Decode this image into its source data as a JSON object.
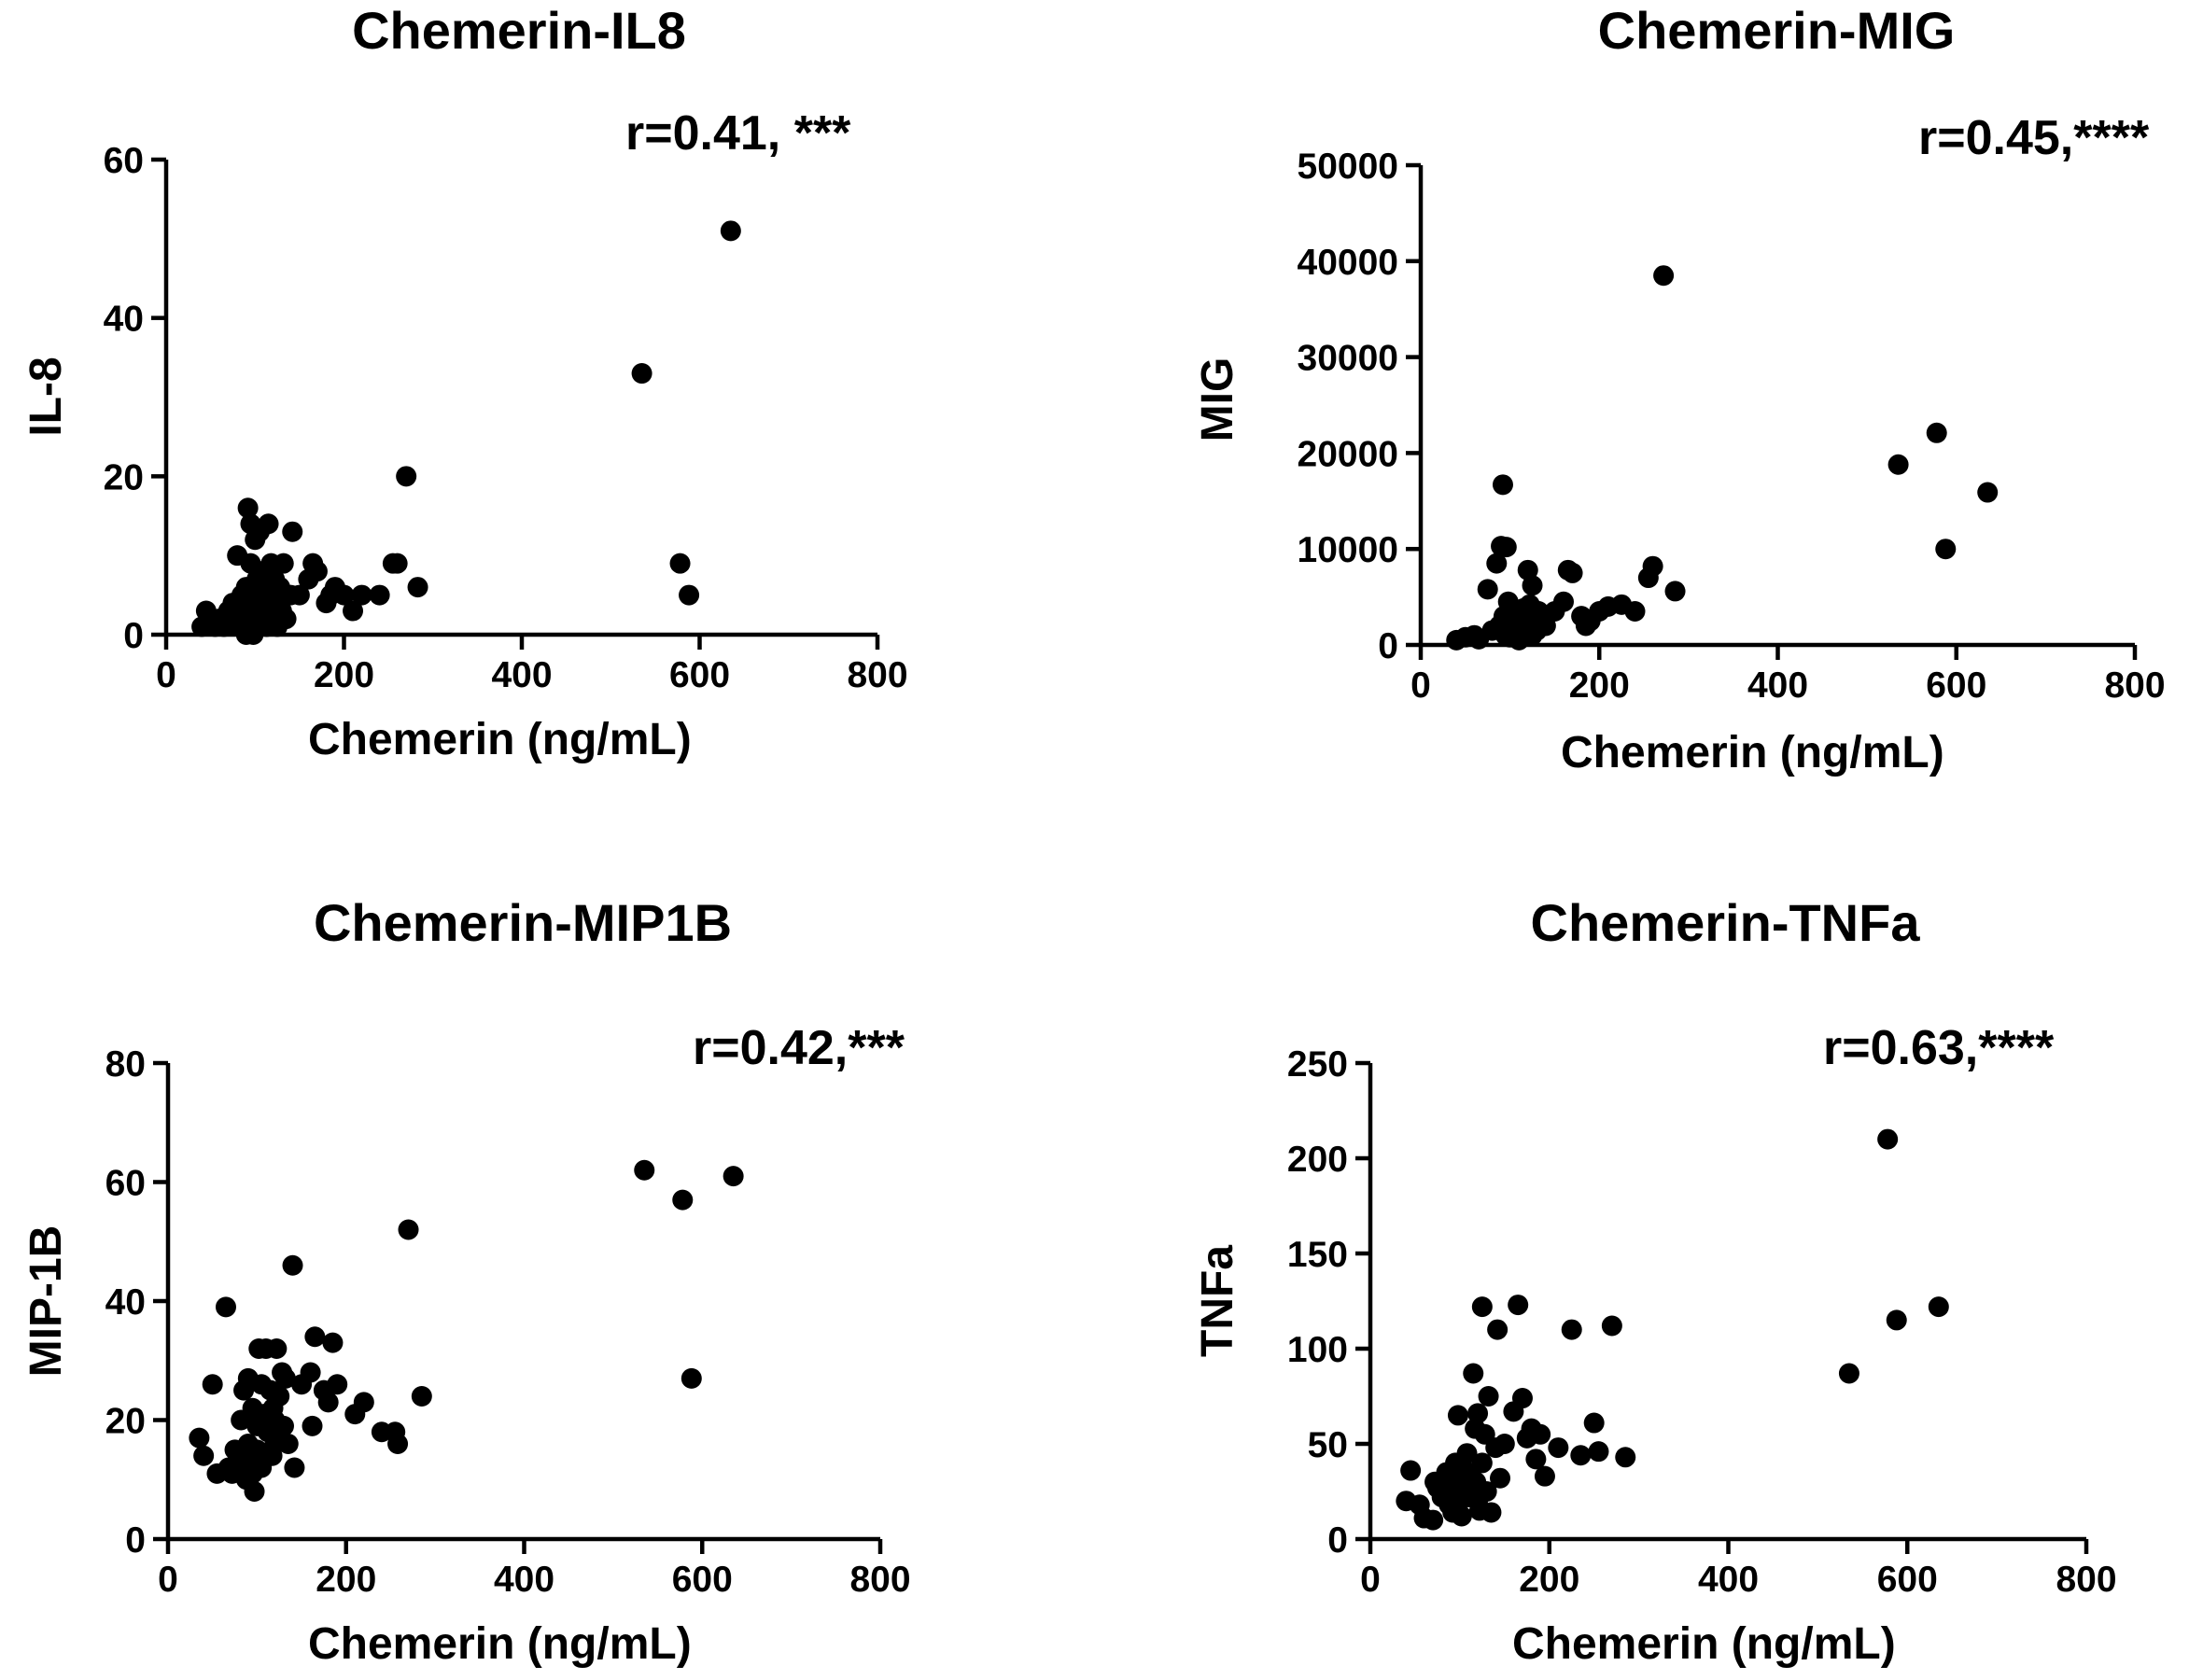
{
  "figure": {
    "background": "#ffffff",
    "marker_color": "#000000"
  },
  "chart_data": [
    {
      "type": "scatter",
      "title": "Chemerin-IL8",
      "annotation": "r=0.41, ***",
      "xlabel": "Chemerin (ng/mL)",
      "ylabel": "IL-8",
      "xlim": [
        0,
        800
      ],
      "ylim": [
        0,
        60
      ],
      "xticks": [
        0,
        200,
        400,
        600,
        800
      ],
      "yticks": [
        0,
        20,
        40,
        60
      ],
      "xtick_labels": [
        "0",
        "200",
        "400",
        "600",
        "800"
      ],
      "ytick_labels": [
        "0",
        "20",
        "40",
        "60"
      ],
      "points": [
        [
          40,
          1
        ],
        [
          45,
          3
        ],
        [
          50,
          2
        ],
        [
          55,
          1
        ],
        [
          60,
          2
        ],
        [
          65,
          1
        ],
        [
          70,
          3
        ],
        [
          75,
          4
        ],
        [
          78,
          2
        ],
        [
          80,
          10
        ],
        [
          82,
          1
        ],
        [
          85,
          5
        ],
        [
          88,
          3
        ],
        [
          90,
          6
        ],
        [
          90,
          0
        ],
        [
          92,
          16
        ],
        [
          93,
          2
        ],
        [
          95,
          9
        ],
        [
          95,
          14
        ],
        [
          97,
          4
        ],
        [
          98,
          0
        ],
        [
          100,
          3
        ],
        [
          100,
          12
        ],
        [
          102,
          7
        ],
        [
          103,
          1
        ],
        [
          105,
          5
        ],
        [
          105,
          13
        ],
        [
          107,
          2
        ],
        [
          108,
          8
        ],
        [
          110,
          4
        ],
        [
          112,
          6
        ],
        [
          113,
          1
        ],
        [
          115,
          14
        ],
        [
          117,
          3
        ],
        [
          118,
          9
        ],
        [
          120,
          2
        ],
        [
          120,
          5
        ],
        [
          122,
          7
        ],
        [
          125,
          1
        ],
        [
          125,
          4
        ],
        [
          128,
          6
        ],
        [
          130,
          3
        ],
        [
          132,
          9
        ],
        [
          135,
          2
        ],
        [
          140,
          5
        ],
        [
          142,
          13
        ],
        [
          150,
          5
        ],
        [
          160,
          7
        ],
        [
          165,
          9
        ],
        [
          170,
          8
        ],
        [
          180,
          4
        ],
        [
          185,
          5
        ],
        [
          190,
          6
        ],
        [
          200,
          5
        ],
        [
          210,
          3
        ],
        [
          220,
          5
        ],
        [
          240,
          5
        ],
        [
          255,
          9
        ],
        [
          260,
          9
        ],
        [
          270,
          20
        ],
        [
          283,
          6
        ],
        [
          535,
          33
        ],
        [
          578,
          9
        ],
        [
          588,
          5
        ],
        [
          635,
          51
        ]
      ]
    },
    {
      "type": "scatter",
      "title": "Chemerin-MIG",
      "annotation": "r=0.45,****",
      "xlabel": "Chemerin (ng/mL)",
      "ylabel": "MIG",
      "xlim": [
        0,
        800
      ],
      "ylim": [
        0,
        50000
      ],
      "xticks": [
        0,
        200,
        400,
        600,
        800
      ],
      "yticks": [
        0,
        10000,
        20000,
        30000,
        40000,
        50000
      ],
      "xtick_labels": [
        "0",
        "200",
        "400",
        "600",
        "800"
      ],
      "ytick_labels": [
        "0",
        "10000",
        "20000",
        "30000",
        "40000",
        "50000"
      ],
      "points": [
        [
          40,
          500
        ],
        [
          50,
          800
        ],
        [
          60,
          1000
        ],
        [
          65,
          600
        ],
        [
          75,
          5800
        ],
        [
          80,
          1500
        ],
        [
          85,
          8500
        ],
        [
          88,
          2000
        ],
        [
          90,
          10300
        ],
        [
          92,
          16700
        ],
        [
          93,
          3000
        ],
        [
          95,
          1000
        ],
        [
          96,
          10200
        ],
        [
          98,
          4500
        ],
        [
          100,
          2500
        ],
        [
          100,
          800
        ],
        [
          102,
          1800
        ],
        [
          105,
          3000
        ],
        [
          108,
          1200
        ],
        [
          110,
          500
        ],
        [
          112,
          2200
        ],
        [
          115,
          3800
        ],
        [
          118,
          1600
        ],
        [
          120,
          7800
        ],
        [
          122,
          4200
        ],
        [
          125,
          1000
        ],
        [
          125,
          6200
        ],
        [
          128,
          2800
        ],
        [
          130,
          1500
        ],
        [
          132,
          3500
        ],
        [
          140,
          2000
        ],
        [
          150,
          3500
        ],
        [
          160,
          4500
        ],
        [
          165,
          7800
        ],
        [
          170,
          7500
        ],
        [
          180,
          3000
        ],
        [
          185,
          2000
        ],
        [
          190,
          2500
        ],
        [
          200,
          3500
        ],
        [
          210,
          4000
        ],
        [
          225,
          4200
        ],
        [
          240,
          3500
        ],
        [
          255,
          7000
        ],
        [
          260,
          8200
        ],
        [
          272,
          38500
        ],
        [
          285,
          5600
        ],
        [
          535,
          18800
        ],
        [
          578,
          22100
        ],
        [
          588,
          10000
        ],
        [
          635,
          15900
        ]
      ]
    },
    {
      "type": "scatter",
      "title": "Chemerin-MIP1B",
      "annotation": "r=0.42,***",
      "xlabel": "Chemerin (ng/mL)",
      "ylabel": "MIP-1B",
      "xlim": [
        0,
        800
      ],
      "ylim": [
        0,
        80
      ],
      "xticks": [
        0,
        200,
        400,
        600,
        800
      ],
      "yticks": [
        0,
        20,
        40,
        60,
        80
      ],
      "xtick_labels": [
        "0",
        "200",
        "400",
        "600",
        "800"
      ],
      "ytick_labels": [
        "0",
        "20",
        "40",
        "60",
        "80"
      ],
      "points": [
        [
          35,
          17
        ],
        [
          40,
          14
        ],
        [
          50,
          26
        ],
        [
          55,
          11
        ],
        [
          65,
          39
        ],
        [
          68,
          12
        ],
        [
          72,
          11
        ],
        [
          75,
          15
        ],
        [
          80,
          13
        ],
        [
          82,
          20
        ],
        [
          85,
          25
        ],
        [
          88,
          10
        ],
        [
          90,
          27
        ],
        [
          90,
          16
        ],
        [
          92,
          13
        ],
        [
          95,
          22
        ],
        [
          95,
          11
        ],
        [
          97,
          8
        ],
        [
          100,
          19
        ],
        [
          100,
          15
        ],
        [
          102,
          32
        ],
        [
          105,
          26
        ],
        [
          105,
          12
        ],
        [
          108,
          21
        ],
        [
          110,
          32
        ],
        [
          112,
          18
        ],
        [
          115,
          25
        ],
        [
          117,
          14
        ],
        [
          118,
          22
        ],
        [
          120,
          20
        ],
        [
          120,
          16
        ],
        [
          122,
          32
        ],
        [
          125,
          17
        ],
        [
          125,
          24
        ],
        [
          128,
          28
        ],
        [
          130,
          19
        ],
        [
          132,
          27
        ],
        [
          135,
          16
        ],
        [
          140,
          46
        ],
        [
          142,
          12
        ],
        [
          150,
          26
        ],
        [
          160,
          28
        ],
        [
          162,
          19
        ],
        [
          165,
          34
        ],
        [
          175,
          25
        ],
        [
          180,
          23
        ],
        [
          185,
          33
        ],
        [
          190,
          26
        ],
        [
          210,
          21
        ],
        [
          220,
          23
        ],
        [
          240,
          18
        ],
        [
          255,
          18
        ],
        [
          258,
          16
        ],
        [
          270,
          52
        ],
        [
          285,
          24
        ],
        [
          535,
          62
        ],
        [
          578,
          57
        ],
        [
          588,
          27
        ],
        [
          635,
          61
        ]
      ]
    },
    {
      "type": "scatter",
      "title": "Chemerin-TNFa",
      "annotation": "r=0.63,****",
      "xlabel": "Chemerin (ng/mL)",
      "ylabel": "TNFa",
      "xlim": [
        0,
        800
      ],
      "ylim": [
        0,
        250
      ],
      "xticks": [
        0,
        200,
        400,
        600,
        800
      ],
      "yticks": [
        0,
        50,
        100,
        150,
        200,
        250
      ],
      "xtick_labels": [
        "0",
        "200",
        "400",
        "600",
        "800"
      ],
      "ytick_labels": [
        "0",
        "50",
        "100",
        "150",
        "200",
        "250"
      ],
      "points": [
        [
          40,
          20
        ],
        [
          45,
          36
        ],
        [
          55,
          18
        ],
        [
          60,
          11
        ],
        [
          70,
          10
        ],
        [
          72,
          30
        ],
        [
          75,
          27
        ],
        [
          80,
          22
        ],
        [
          85,
          35
        ],
        [
          88,
          18
        ],
        [
          90,
          28
        ],
        [
          92,
          14
        ],
        [
          95,
          40
        ],
        [
          95,
          25
        ],
        [
          98,
          65
        ],
        [
          100,
          32
        ],
        [
          100,
          20
        ],
        [
          102,
          12
        ],
        [
          105,
          30
        ],
        [
          108,
          45
        ],
        [
          110,
          35
        ],
        [
          112,
          22
        ],
        [
          115,
          87
        ],
        [
          117,
          58
        ],
        [
          118,
          30
        ],
        [
          120,
          66
        ],
        [
          120,
          20
        ],
        [
          122,
          15
        ],
        [
          125,
          122
        ],
        [
          125,
          40
        ],
        [
          128,
          55
        ],
        [
          130,
          25
        ],
        [
          132,
          75
        ],
        [
          135,
          14
        ],
        [
          140,
          48
        ],
        [
          142,
          110
        ],
        [
          145,
          32
        ],
        [
          150,
          50
        ],
        [
          160,
          67
        ],
        [
          165,
          123
        ],
        [
          170,
          74
        ],
        [
          175,
          53
        ],
        [
          180,
          58
        ],
        [
          185,
          42
        ],
        [
          190,
          55
        ],
        [
          195,
          33
        ],
        [
          210,
          48
        ],
        [
          225,
          110
        ],
        [
          235,
          44
        ],
        [
          250,
          61
        ],
        [
          255,
          46
        ],
        [
          270,
          112
        ],
        [
          285,
          43
        ],
        [
          535,
          87
        ],
        [
          578,
          210
        ],
        [
          588,
          115
        ],
        [
          635,
          122
        ]
      ]
    }
  ]
}
